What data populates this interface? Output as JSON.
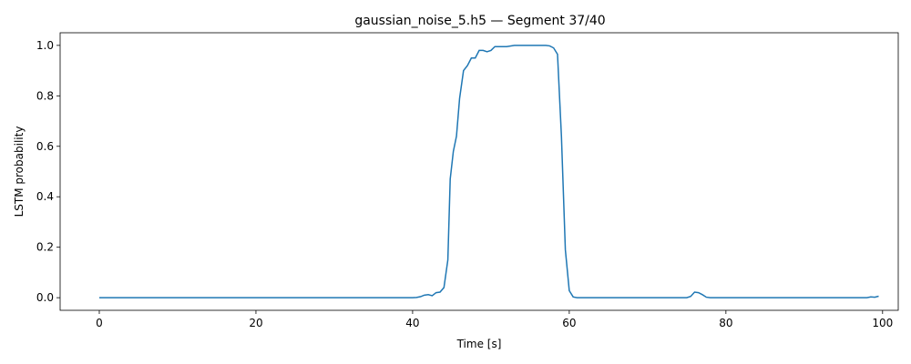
{
  "chart_data": {
    "type": "line",
    "title": "gaussian_noise_5.h5 — Segment 37/40",
    "xlabel": "Time [s]",
    "ylabel": "LSTM probability",
    "xlim": [
      -5,
      102
    ],
    "ylim": [
      -0.05,
      1.05
    ],
    "xticks": [
      0,
      20,
      40,
      60,
      80,
      100
    ],
    "xtick_labels": [
      "0",
      "20",
      "40",
      "60",
      "80",
      "100"
    ],
    "yticks": [
      0.0,
      0.2,
      0.4,
      0.6,
      0.8,
      1.0
    ],
    "ytick_labels": [
      "0.0",
      "0.2",
      "0.4",
      "0.6",
      "0.8",
      "1.0"
    ],
    "grid": false,
    "series": [
      {
        "color": "#1f77b4",
        "x": [
          0,
          10,
          20,
          30,
          40,
          40.5,
          41,
          41.5,
          42,
          42.5,
          43,
          43.5,
          44,
          44.5,
          44.8,
          45.2,
          45.6,
          46,
          46.5,
          47,
          47.5,
          48,
          48.5,
          49,
          49.5,
          50,
          50.5,
          51,
          52,
          53,
          54,
          55,
          56,
          57,
          57.5,
          58,
          58.5,
          59,
          59.5,
          60,
          60.5,
          61,
          62,
          65,
          70,
          75,
          75.5,
          76,
          76.5,
          77,
          77.5,
          78,
          80,
          85,
          90,
          95,
          98,
          98.5,
          99,
          99.5
        ],
        "y": [
          0.0,
          0.0,
          0.0,
          0.0,
          0.0,
          0.001,
          0.004,
          0.01,
          0.012,
          0.008,
          0.02,
          0.022,
          0.04,
          0.15,
          0.47,
          0.58,
          0.64,
          0.79,
          0.9,
          0.92,
          0.95,
          0.95,
          0.98,
          0.98,
          0.975,
          0.98,
          0.995,
          0.995,
          0.995,
          1.0,
          1.0,
          1.0,
          1.0,
          1.0,
          0.998,
          0.99,
          0.965,
          0.64,
          0.19,
          0.028,
          0.003,
          0.0,
          0.0,
          0.0,
          0.0,
          0.0,
          0.005,
          0.022,
          0.02,
          0.012,
          0.002,
          0.0,
          0.0,
          0.0,
          0.0,
          0.0,
          0.0,
          0.003,
          0.002,
          0.006
        ]
      }
    ]
  }
}
